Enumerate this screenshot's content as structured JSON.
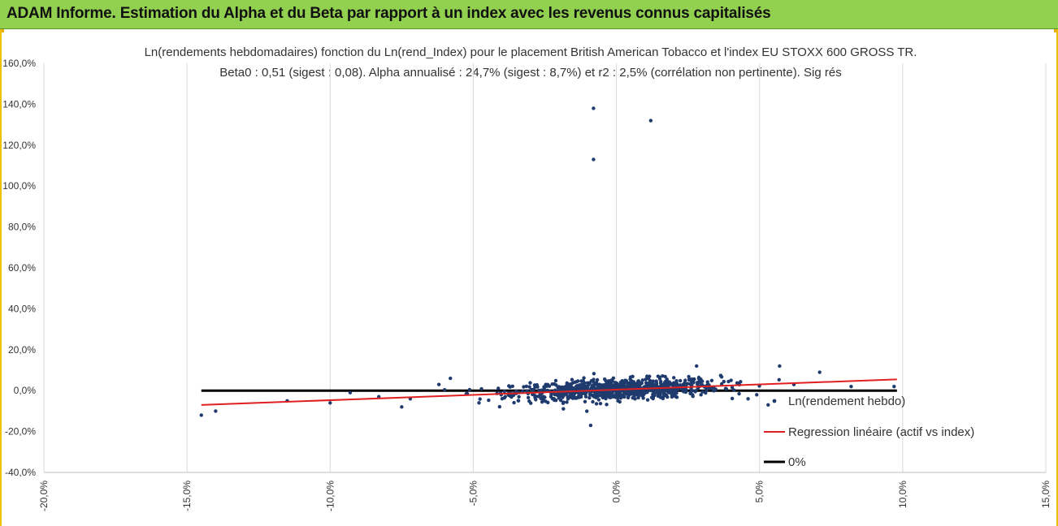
{
  "header": {
    "title": "ADAM Informe. Estimation du Alpha et du Beta par rapport à un index avec les revenus connus capitalisés"
  },
  "colors": {
    "banner": "#92d050",
    "points": "#1f3b6e",
    "regression": "#e02020",
    "zero_line": "#000000",
    "grid": "#d9d9d9"
  },
  "chart_data": {
    "type": "scatter",
    "title": "Ln(rendements hebdomadaires) fonction du Ln(rend_Index) pour le placement British  American Tobacco  et l'index EU STOXX  600 GROSS TR.",
    "subtitle": "Beta0 : 0,51 (sigest : 0,08).  Alpha annualisé : 24,7% (sigest :  8,7%) et r2 : 2,5% (corrélation non pertinente). Sig rés",
    "xlabel": "",
    "ylabel": "",
    "xlim": [
      -0.2,
      0.15
    ],
    "ylim": [
      -0.4,
      1.6
    ],
    "grid": true,
    "legend_position": "bottom-right",
    "x_tick_labels": [
      "-20,0%",
      "-15,0%",
      "-10,0%",
      "-5,0%",
      "0,0%",
      "5,0%",
      "10,0%",
      "15,0%"
    ],
    "x_tick_values": [
      -0.2,
      -0.15,
      -0.1,
      -0.05,
      0.0,
      0.05,
      0.1,
      0.15
    ],
    "y_tick_labels": [
      "-40,0%",
      "-20,0%",
      "0,0%",
      "20,0%",
      "40,0%",
      "60,0%",
      "80,0%",
      "100,0%",
      "120,0%",
      "140,0%",
      "160,0%"
    ],
    "y_tick_values": [
      -0.4,
      -0.2,
      0.0,
      0.2,
      0.4,
      0.6,
      0.8,
      1.0,
      1.2,
      1.4,
      1.6
    ],
    "series": [
      {
        "name": "Ln(rendement hebdo)",
        "kind": "points",
        "notable_points": [
          [
            -0.008,
            1.38
          ],
          [
            0.012,
            1.32
          ],
          [
            -0.008,
            1.13
          ],
          [
            -0.145,
            -0.12
          ],
          [
            -0.14,
            -0.1
          ],
          [
            -0.115,
            -0.05
          ],
          [
            -0.1,
            -0.06
          ],
          [
            -0.093,
            -0.01
          ],
          [
            -0.083,
            -0.03
          ],
          [
            -0.075,
            -0.08
          ],
          [
            -0.072,
            -0.04
          ],
          [
            -0.062,
            0.03
          ],
          [
            -0.058,
            0.06
          ],
          [
            -0.048,
            -0.06
          ],
          [
            -0.009,
            -0.17
          ],
          [
            0.028,
            0.12
          ],
          [
            0.057,
            0.12
          ],
          [
            0.071,
            0.09
          ],
          [
            0.082,
            0.02
          ],
          [
            0.097,
            0.02
          ],
          [
            0.062,
            0.03
          ],
          [
            0.053,
            -0.07
          ],
          [
            0.046,
            -0.04
          ]
        ],
        "cluster": {
          "center_x": 0.0,
          "spread_x": 0.018,
          "center_y": 0.005,
          "spread_y": 0.025,
          "count": 900
        }
      },
      {
        "name": "Regression linéaire (actif vs index)",
        "kind": "line",
        "points": [
          [
            -0.145,
            -0.07
          ],
          [
            0.098,
            0.055
          ]
        ]
      },
      {
        "name": "0%",
        "kind": "line",
        "points": [
          [
            -0.145,
            0.0
          ],
          [
            0.098,
            0.0
          ]
        ]
      }
    ]
  }
}
